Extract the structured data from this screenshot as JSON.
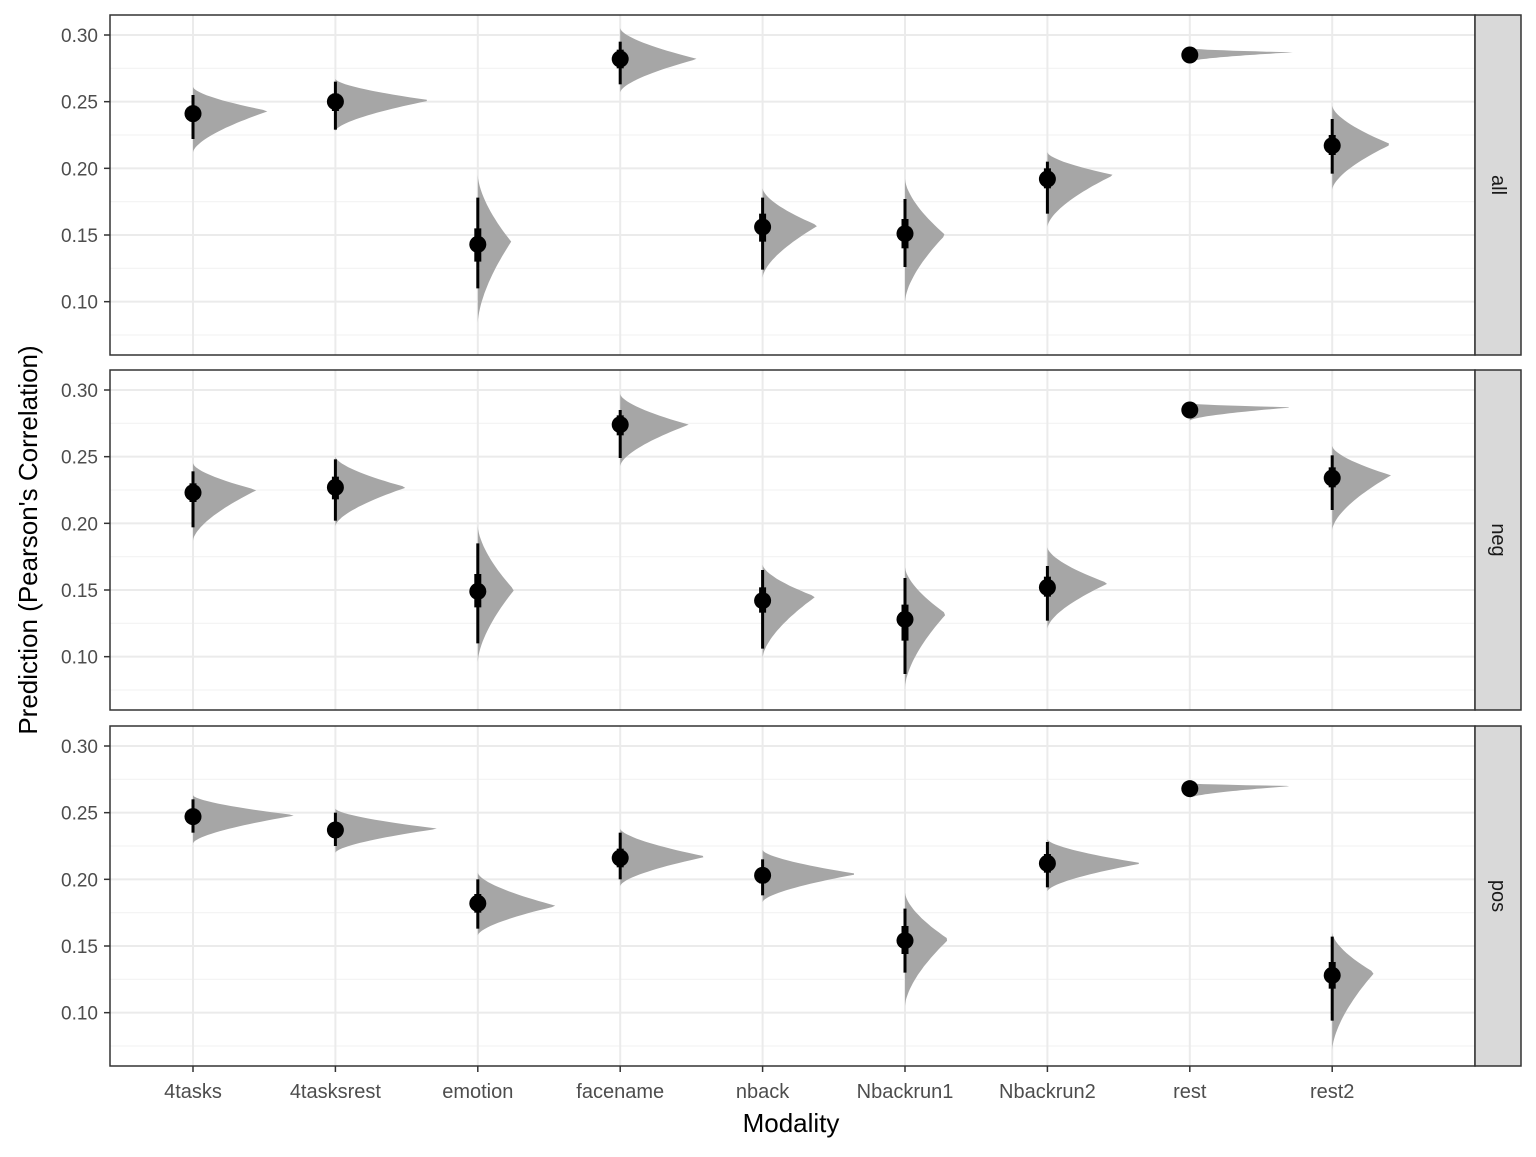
{
  "chart_data": {
    "type": "halfeye",
    "xlabel": "Modality",
    "ylabel": "Prediction (Pearson's Correlation)",
    "categories": [
      "4tasks",
      "4tasksrest",
      "emotion",
      "facename",
      "nback",
      "Nbackrun1",
      "Nbackrun2",
      "rest",
      "rest2"
    ],
    "yticks": [
      "0.10",
      "0.15",
      "0.20",
      "0.25",
      "0.30"
    ],
    "ylim": [
      0.06,
      0.315
    ],
    "grid": true,
    "facets": [
      {
        "label": "all",
        "points": [
          {
            "category": "4tasks",
            "median": 0.241,
            "q66": [
              0.235,
              0.247
            ],
            "q95": [
              0.222,
              0.255
            ],
            "density": [
              0.212,
              0.243,
              0.261
            ]
          },
          {
            "category": "4tasksrest",
            "median": 0.25,
            "q66": [
              0.243,
              0.256
            ],
            "q95": [
              0.229,
              0.265
            ],
            "density": [
              0.228,
              0.251,
              0.267
            ]
          },
          {
            "category": "emotion",
            "median": 0.143,
            "q66": [
              0.13,
              0.155
            ],
            "q95": [
              0.11,
              0.178
            ],
            "density": [
              0.084,
              0.145,
              0.195
            ]
          },
          {
            "category": "facename",
            "median": 0.282,
            "q66": [
              0.275,
              0.289
            ],
            "q95": [
              0.263,
              0.295
            ],
            "density": [
              0.257,
              0.282,
              0.305
            ]
          },
          {
            "category": "nback",
            "median": 0.156,
            "q66": [
              0.145,
              0.166
            ],
            "q95": [
              0.124,
              0.178
            ],
            "density": [
              0.118,
              0.157,
              0.185
            ]
          },
          {
            "category": "Nbackrun1",
            "median": 0.151,
            "q66": [
              0.14,
              0.162
            ],
            "q95": [
              0.126,
              0.177
            ],
            "density": [
              0.1,
              0.15,
              0.192
            ]
          },
          {
            "category": "Nbackrun2",
            "median": 0.192,
            "q66": [
              0.185,
              0.2
            ],
            "q95": [
              0.166,
              0.205
            ],
            "density": [
              0.156,
              0.195,
              0.212
            ]
          },
          {
            "category": "rest",
            "median": 0.285,
            "q66": [
              0.285,
              0.285
            ],
            "q95": [
              0.285,
              0.285
            ],
            "density": [
              0.28,
              0.287,
              0.29
            ]
          },
          {
            "category": "rest2",
            "median": 0.217,
            "q66": [
              0.21,
              0.225
            ],
            "q95": [
              0.196,
              0.237
            ],
            "density": [
              0.184,
              0.218,
              0.247
            ]
          }
        ]
      },
      {
        "label": "neg",
        "points": [
          {
            "category": "4tasks",
            "median": 0.223,
            "q66": [
              0.216,
              0.23
            ],
            "q95": [
              0.197,
              0.239
            ],
            "density": [
              0.187,
              0.225,
              0.245
            ]
          },
          {
            "category": "4tasksrest",
            "median": 0.227,
            "q66": [
              0.218,
              0.235
            ],
            "q95": [
              0.202,
              0.248
            ],
            "density": [
              0.198,
              0.227,
              0.25
            ]
          },
          {
            "category": "emotion",
            "median": 0.149,
            "q66": [
              0.137,
              0.162
            ],
            "q95": [
              0.11,
              0.185
            ],
            "density": [
              0.096,
              0.15,
              0.198
            ]
          },
          {
            "category": "facename",
            "median": 0.274,
            "q66": [
              0.266,
              0.281
            ],
            "q95": [
              0.249,
              0.285
            ],
            "density": [
              0.243,
              0.274,
              0.297
            ]
          },
          {
            "category": "nback",
            "median": 0.142,
            "q66": [
              0.133,
              0.152
            ],
            "q95": [
              0.106,
              0.165
            ],
            "density": [
              0.099,
              0.145,
              0.169
            ]
          },
          {
            "category": "Nbackrun1",
            "median": 0.128,
            "q66": [
              0.112,
              0.139
            ],
            "q95": [
              0.087,
              0.159
            ],
            "density": [
              0.077,
              0.132,
              0.167
            ]
          },
          {
            "category": "Nbackrun2",
            "median": 0.152,
            "q66": [
              0.145,
              0.16
            ],
            "q95": [
              0.127,
              0.168
            ],
            "density": [
              0.121,
              0.155,
              0.182
            ]
          },
          {
            "category": "rest",
            "median": 0.285,
            "q66": [
              0.285,
              0.285
            ],
            "q95": [
              0.285,
              0.285
            ],
            "density": [
              0.277,
              0.287,
              0.29
            ]
          },
          {
            "category": "rest2",
            "median": 0.234,
            "q66": [
              0.227,
              0.242
            ],
            "q95": [
              0.21,
              0.251
            ],
            "density": [
              0.195,
              0.236,
              0.258
            ]
          }
        ]
      },
      {
        "label": "pos",
        "points": [
          {
            "category": "4tasks",
            "median": 0.247,
            "q66": [
              0.242,
              0.253
            ],
            "q95": [
              0.235,
              0.26
            ],
            "density": [
              0.227,
              0.248,
              0.263
            ]
          },
          {
            "category": "4tasksrest",
            "median": 0.237,
            "q66": [
              0.231,
              0.242
            ],
            "q95": [
              0.225,
              0.25
            ],
            "density": [
              0.22,
              0.238,
              0.253
            ]
          },
          {
            "category": "emotion",
            "median": 0.182,
            "q66": [
              0.175,
              0.189
            ],
            "q95": [
              0.163,
              0.2
            ],
            "density": [
              0.158,
              0.18,
              0.205
            ]
          },
          {
            "category": "facename",
            "median": 0.216,
            "q66": [
              0.209,
              0.223
            ],
            "q95": [
              0.2,
              0.235
            ],
            "density": [
              0.195,
              0.217,
              0.238
            ]
          },
          {
            "category": "nback",
            "median": 0.203,
            "q66": [
              0.197,
              0.208
            ],
            "q95": [
              0.188,
              0.215
            ],
            "density": [
              0.183,
              0.204,
              0.222
            ]
          },
          {
            "category": "Nbackrun1",
            "median": 0.154,
            "q66": [
              0.144,
              0.165
            ],
            "q95": [
              0.13,
              0.178
            ],
            "density": [
              0.105,
              0.155,
              0.19
            ]
          },
          {
            "category": "Nbackrun2",
            "median": 0.212,
            "q66": [
              0.205,
              0.219
            ],
            "q95": [
              0.194,
              0.228
            ],
            "density": [
              0.191,
              0.212,
              0.23
            ]
          },
          {
            "category": "rest",
            "median": 0.268,
            "q66": [
              0.268,
              0.268
            ],
            "q95": [
              0.268,
              0.268
            ],
            "density": [
              0.261,
              0.27,
              0.272
            ]
          },
          {
            "category": "rest2",
            "median": 0.128,
            "q66": [
              0.118,
              0.138
            ],
            "q95": [
              0.094,
              0.157
            ],
            "density": [
              0.072,
              0.13,
              0.16
            ]
          }
        ]
      }
    ],
    "colors": {
      "density": "#a6a6a6",
      "interval": "#000000",
      "point": "#000000",
      "strip": "#d9d9d9",
      "grid_major": "#ebebeb",
      "grid_minor": "#f3f3f3",
      "frame": "#333333"
    }
  }
}
